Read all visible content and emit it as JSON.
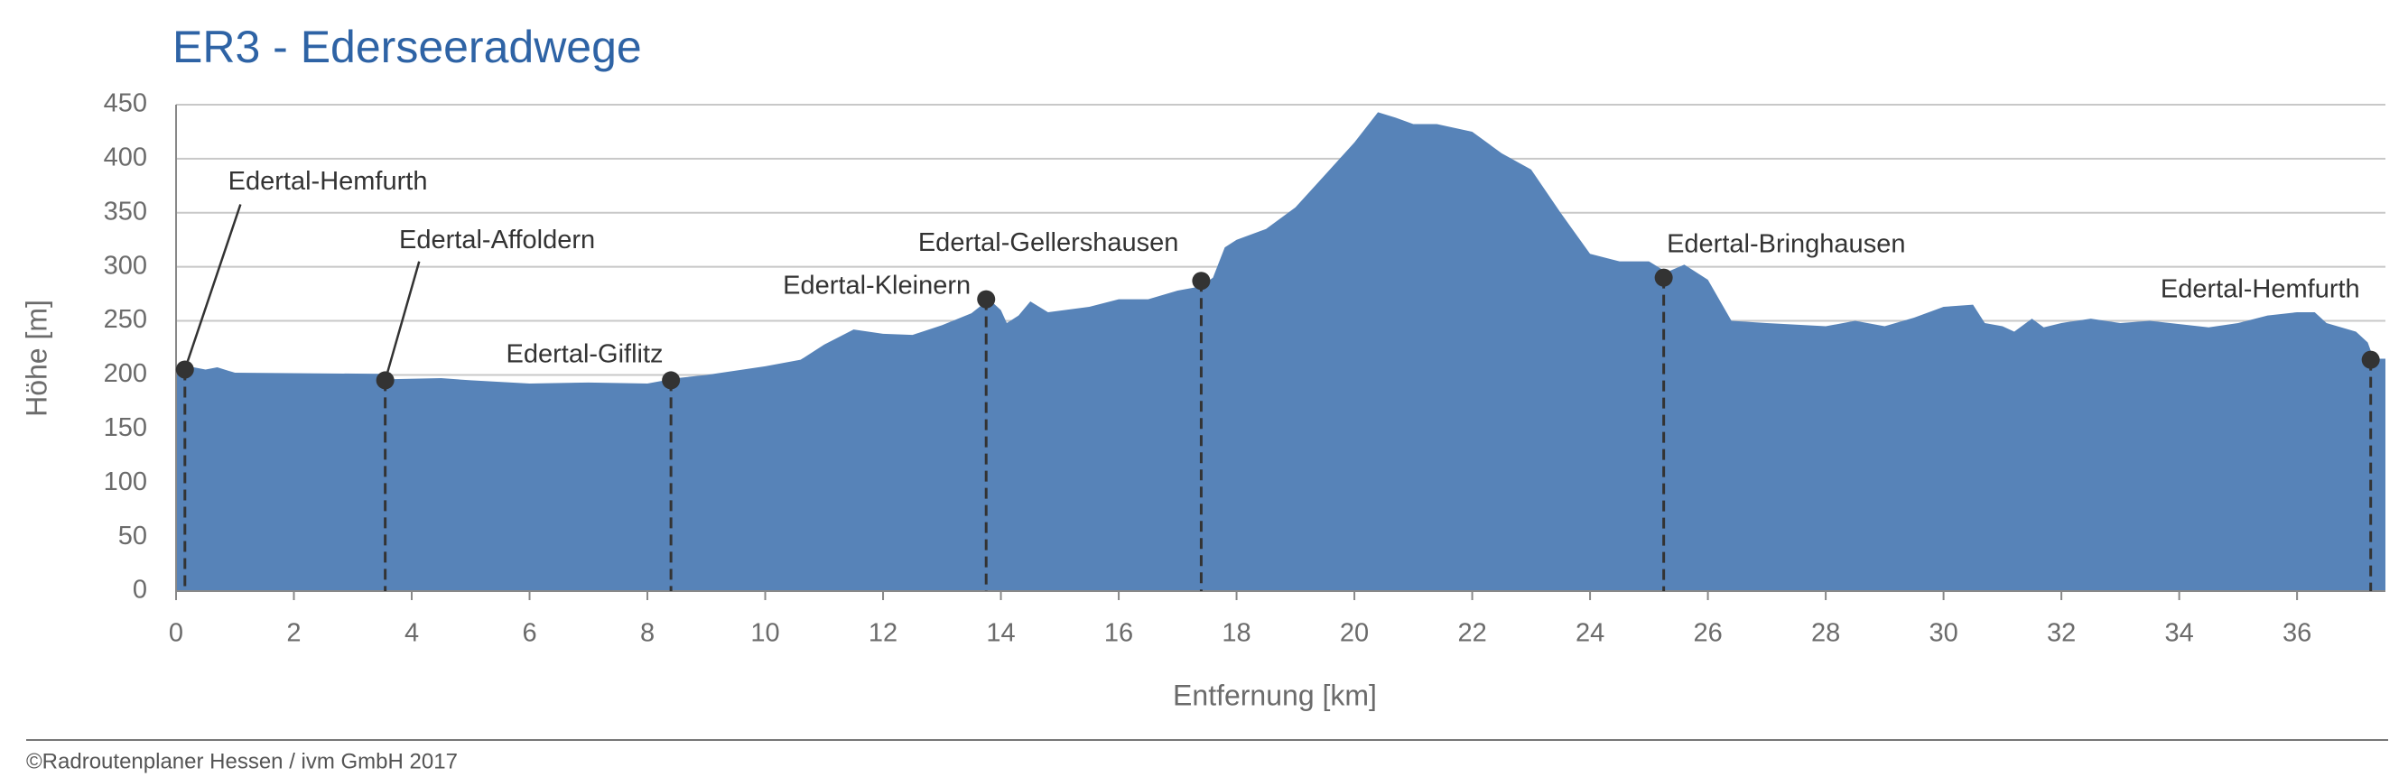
{
  "chart_data": {
    "type": "area",
    "title": "ER3 - Ederseeradwege",
    "xlabel": "Entfernung [km]",
    "ylabel": "Höhe [m]",
    "footer": "©Radroutenplaner Hessen / ivm GmbH 2017",
    "color": "#5783b8",
    "grid": true,
    "xlim": [
      0,
      37.5
    ],
    "ylim": [
      0,
      450
    ],
    "xticks": [
      0,
      2,
      4,
      6,
      8,
      10,
      12,
      14,
      16,
      18,
      20,
      22,
      24,
      26,
      28,
      30,
      32,
      34,
      36
    ],
    "yticks": [
      0,
      50,
      100,
      150,
      200,
      250,
      300,
      350,
      400,
      450
    ],
    "x": [
      0,
      0.3,
      0.5,
      0.7,
      1,
      3.5,
      3.6,
      4.5,
      5,
      6,
      7,
      8,
      8.5,
      9,
      10,
      10.6,
      11,
      11.5,
      12,
      12.5,
      13,
      13.5,
      13.8,
      14,
      14.1,
      14.3,
      14.5,
      14.8,
      15.5,
      16,
      16.5,
      17,
      17.4,
      17.6,
      17.8,
      18,
      18.5,
      19,
      19.5,
      20,
      20.4,
      20.7,
      21,
      21.4,
      22,
      22.5,
      23,
      23.5,
      24,
      24.5,
      25,
      25.3,
      25.6,
      26,
      26.4,
      27,
      28,
      28.5,
      29,
      29.5,
      30,
      30.5,
      30.7,
      31,
      31.2,
      31.5,
      31.7,
      32,
      32.5,
      33,
      33.5,
      34,
      34.5,
      35,
      35.5,
      36,
      36.3,
      36.5,
      37,
      37.2,
      37.3,
      37.5
    ],
    "values": [
      205,
      207,
      205,
      207,
      202,
      201,
      196,
      197,
      195,
      192,
      193,
      192,
      197,
      200,
      208,
      214,
      228,
      242,
      238,
      237,
      246,
      257,
      270,
      260,
      248,
      255,
      268,
      258,
      263,
      270,
      270,
      278,
      282,
      290,
      318,
      325,
      335,
      355,
      385,
      415,
      443,
      438,
      432,
      432,
      425,
      405,
      390,
      350,
      312,
      305,
      305,
      295,
      302,
      288,
      250,
      248,
      245,
      250,
      245,
      253,
      263,
      265,
      248,
      245,
      240,
      252,
      244,
      248,
      252,
      248,
      250,
      247,
      244,
      248,
      255,
      258,
      258,
      248,
      240,
      230,
      215,
      215
    ],
    "waypoints": [
      {
        "label": "Edertal-Hemfurth",
        "x": 0.15,
        "y": 205
      },
      {
        "label": "Edertal-Affoldern",
        "x": 3.55,
        "y": 195
      },
      {
        "label": "Edertal-Giflitz",
        "x": 8.4,
        "y": 195
      },
      {
        "label": "Edertal-Kleinern",
        "x": 13.75,
        "y": 270
      },
      {
        "label": "Edertal-Gellershausen",
        "x": 17.4,
        "y": 287
      },
      {
        "label": "Edertal-Bringhausen",
        "x": 25.25,
        "y": 290
      },
      {
        "label": "Edertal-Hemfurth",
        "x": 37.25,
        "y": 214
      }
    ]
  }
}
